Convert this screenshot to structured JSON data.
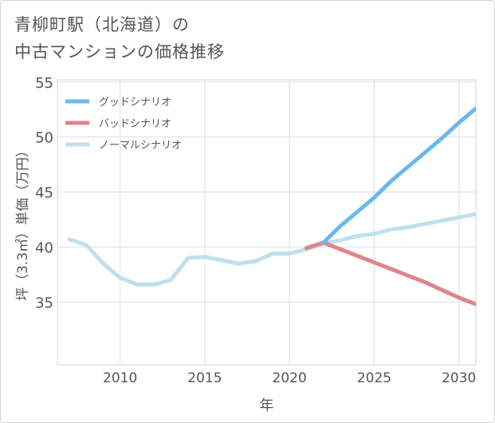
{
  "title_lines": [
    "青柳町駅（北海道）の",
    "中古マンションの価格推移"
  ],
  "chart_data": {
    "type": "line",
    "xlabel": "年",
    "ylabel": "坪（3.3㎡）単価（万円）",
    "xlim": [
      2006.3,
      2031
    ],
    "ylim": [
      29.3,
      55.2
    ],
    "x_ticks": [
      2010,
      2015,
      2020,
      2025,
      2030
    ],
    "y_ticks": [
      35,
      40,
      45,
      50,
      55
    ],
    "grid": true,
    "legend_position": "top-left",
    "series": [
      {
        "name": "グッドシナリオ",
        "color": "#6cb8ec",
        "x": [
          2022,
          2023,
          2024,
          2025,
          2026,
          2027,
          2028,
          2029,
          2030,
          2031
        ],
        "y": [
          40.4,
          41.9,
          43.2,
          44.5,
          46.0,
          47.3,
          48.6,
          49.9,
          51.3,
          52.6
        ]
      },
      {
        "name": "バッドシナリオ",
        "color": "#e0848c",
        "x": [
          2021,
          2022,
          2023,
          2024,
          2025,
          2026,
          2027,
          2028,
          2029,
          2030,
          2031
        ],
        "y": [
          39.9,
          40.4,
          39.8,
          39.2,
          38.6,
          38.0,
          37.4,
          36.8,
          36.1,
          35.4,
          34.8
        ]
      },
      {
        "name": "ノーマルシナリオ",
        "color": "#bfe0ec",
        "x": [
          2007,
          2008,
          2009,
          2010,
          2011,
          2012,
          2013,
          2014,
          2015,
          2016,
          2017,
          2018,
          2019,
          2020,
          2021,
          2022,
          2023,
          2024,
          2025,
          2026,
          2027,
          2028,
          2029,
          2030,
          2031
        ],
        "y": [
          40.7,
          40.2,
          38.5,
          37.2,
          36.6,
          36.6,
          37.0,
          39.0,
          39.1,
          38.8,
          38.5,
          38.7,
          39.4,
          39.4,
          39.8,
          40.3,
          40.6,
          41.0,
          41.2,
          41.6,
          41.8,
          42.1,
          42.4,
          42.7,
          43.0
        ]
      }
    ]
  }
}
